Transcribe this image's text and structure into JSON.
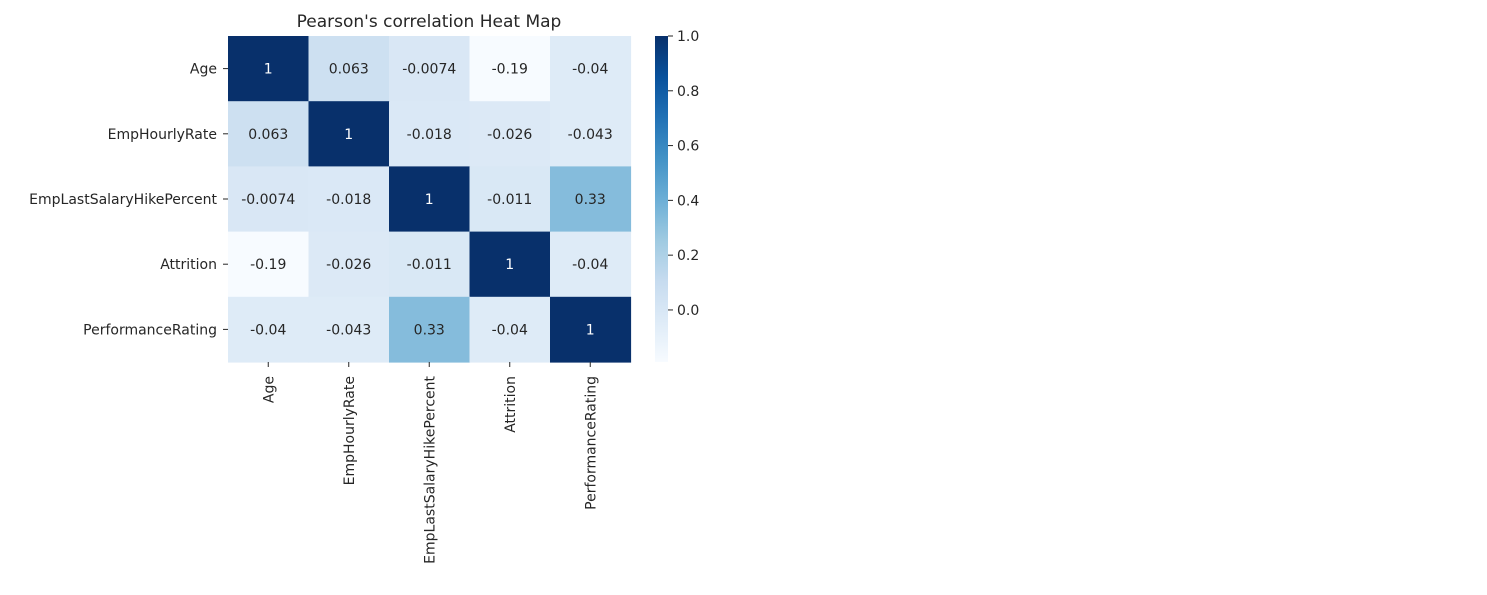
{
  "chart_data": {
    "type": "heatmap",
    "title": "Pearson's correlation Heat Map",
    "row_labels": [
      "Age",
      "EmpHourlyRate",
      "EmpLastSalaryHikePercent",
      "Attrition",
      "PerformanceRating"
    ],
    "col_labels": [
      "Age",
      "EmpHourlyRate",
      "EmpLastSalaryHikePercent",
      "Attrition",
      "PerformanceRating"
    ],
    "values": [
      [
        1,
        0.063,
        -0.0074,
        -0.19,
        -0.04
      ],
      [
        0.063,
        1,
        -0.018,
        -0.026,
        -0.043
      ],
      [
        -0.0074,
        -0.018,
        1,
        -0.011,
        0.33
      ],
      [
        -0.19,
        -0.026,
        -0.011,
        1,
        -0.04
      ],
      [
        -0.04,
        -0.043,
        0.33,
        -0.04,
        1
      ]
    ],
    "annotations": [
      [
        "1",
        "0.063",
        "-0.0074",
        "-0.19",
        "-0.04"
      ],
      [
        "0.063",
        "1",
        "-0.018",
        "-0.026",
        "-0.043"
      ],
      [
        "-0.0074",
        "-0.018",
        "1",
        "-0.011",
        "0.33"
      ],
      [
        "-0.19",
        "-0.026",
        "-0.011",
        "1",
        "-0.04"
      ],
      [
        "-0.04",
        "-0.043",
        "0.33",
        "-0.04",
        "1"
      ]
    ],
    "colormap": "Blues",
    "vmin": -0.19,
    "vmax": 1.0,
    "colorbar_ticks": [
      "1.0",
      "0.8",
      "0.6",
      "0.4",
      "0.2",
      "0.0"
    ],
    "colorbar_tick_values": [
      1.0,
      0.8,
      0.6,
      0.4,
      0.2,
      0.0
    ]
  },
  "colors": {
    "text": "#262626",
    "background": "#ffffff"
  }
}
